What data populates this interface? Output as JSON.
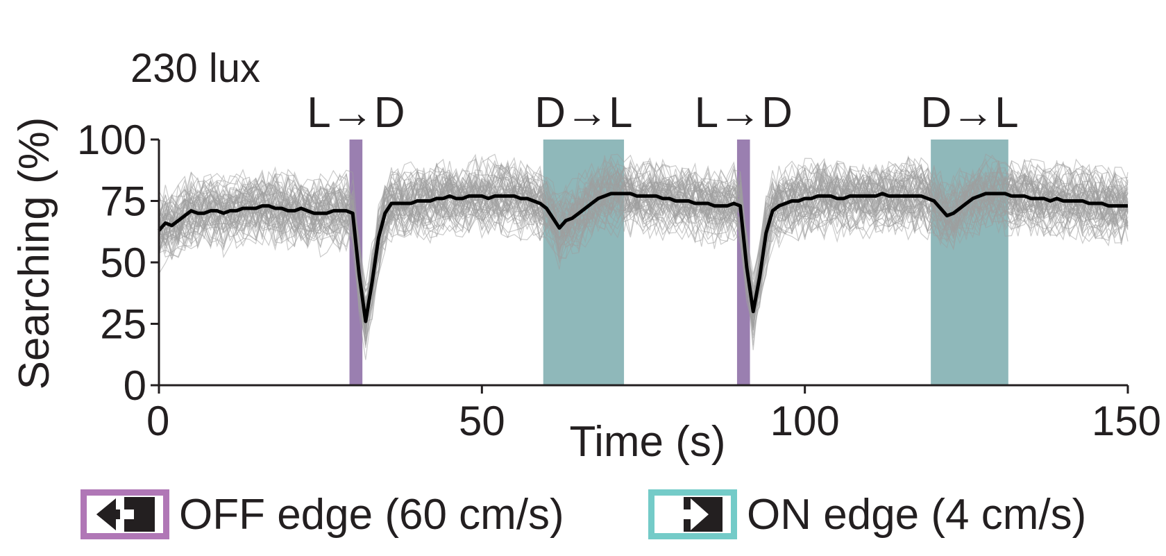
{
  "chart_data": {
    "type": "line",
    "title": "230 lux",
    "xlabel": "Time (s)",
    "ylabel": "Searching (%)",
    "xlim": [
      0,
      150
    ],
    "ylim": [
      0,
      100
    ],
    "xticks": [
      0,
      50,
      100,
      150
    ],
    "xtick_labels": [
      "0",
      "50",
      "100",
      "150"
    ],
    "yticks": [
      0,
      25,
      50,
      75,
      100
    ],
    "ytick_labels": [
      "0",
      "25",
      "50",
      "75",
      "100"
    ],
    "grid": false,
    "colors": {
      "off_edge": "#9a7fb0",
      "on_edge": "#8fb8ba",
      "mean": "#000000",
      "individual": "#9e9e9e",
      "off_legend_border": "#b077b6",
      "on_legend_border": "#74cbc8"
    },
    "stimuli": [
      {
        "label": "L→D",
        "type": "off",
        "start": 29.5,
        "end": 31.5
      },
      {
        "label": "D→L",
        "type": "on",
        "start": 59.5,
        "end": 72
      },
      {
        "label": "L→D",
        "type": "off",
        "start": 89.5,
        "end": 91.5
      },
      {
        "label": "D→L",
        "type": "on",
        "start": 119.5,
        "end": 131.5
      }
    ],
    "series": [
      {
        "role": "mean",
        "points": [
          [
            0,
            63
          ],
          [
            1,
            66
          ],
          [
            2,
            65
          ],
          [
            3,
            67
          ],
          [
            4,
            69
          ],
          [
            5,
            71
          ],
          [
            6,
            70
          ],
          [
            7,
            70
          ],
          [
            8,
            71
          ],
          [
            9,
            71
          ],
          [
            10,
            70
          ],
          [
            11,
            71
          ],
          [
            12,
            71
          ],
          [
            13,
            72
          ],
          [
            14,
            72
          ],
          [
            15,
            72
          ],
          [
            16,
            73
          ],
          [
            17,
            73
          ],
          [
            18,
            72
          ],
          [
            19,
            72
          ],
          [
            20,
            71
          ],
          [
            21,
            71
          ],
          [
            22,
            72
          ],
          [
            23,
            71
          ],
          [
            24,
            70
          ],
          [
            25,
            70
          ],
          [
            26,
            70
          ],
          [
            27,
            71
          ],
          [
            28,
            71
          ],
          [
            29,
            71
          ],
          [
            30,
            70
          ],
          [
            31,
            45
          ],
          [
            32,
            26
          ],
          [
            33,
            42
          ],
          [
            34,
            60
          ],
          [
            35,
            70
          ],
          [
            36,
            74
          ],
          [
            37,
            74
          ],
          [
            38,
            74
          ],
          [
            39,
            74
          ],
          [
            40,
            75
          ],
          [
            41,
            75
          ],
          [
            42,
            75
          ],
          [
            43,
            76
          ],
          [
            44,
            76
          ],
          [
            45,
            77
          ],
          [
            46,
            76
          ],
          [
            47,
            76
          ],
          [
            48,
            77
          ],
          [
            49,
            77
          ],
          [
            50,
            77
          ],
          [
            51,
            76
          ],
          [
            52,
            77
          ],
          [
            53,
            77
          ],
          [
            54,
            77
          ],
          [
            55,
            77
          ],
          [
            56,
            76
          ],
          [
            57,
            76
          ],
          [
            58,
            75
          ],
          [
            59,
            74
          ],
          [
            60,
            72
          ],
          [
            61,
            68
          ],
          [
            62,
            64
          ],
          [
            63,
            67
          ],
          [
            64,
            68
          ],
          [
            65,
            70
          ],
          [
            66,
            72
          ],
          [
            67,
            74
          ],
          [
            68,
            76
          ],
          [
            69,
            77
          ],
          [
            70,
            78
          ],
          [
            71,
            78
          ],
          [
            72,
            78
          ],
          [
            73,
            78
          ],
          [
            74,
            77
          ],
          [
            75,
            77
          ],
          [
            76,
            77
          ],
          [
            77,
            77
          ],
          [
            78,
            76
          ],
          [
            79,
            76
          ],
          [
            80,
            75
          ],
          [
            81,
            75
          ],
          [
            82,
            75
          ],
          [
            83,
            74
          ],
          [
            84,
            74
          ],
          [
            85,
            74
          ],
          [
            86,
            73
          ],
          [
            87,
            73
          ],
          [
            88,
            73
          ],
          [
            89,
            74
          ],
          [
            90,
            73
          ],
          [
            91,
            48
          ],
          [
            92,
            30
          ],
          [
            93,
            44
          ],
          [
            94,
            62
          ],
          [
            95,
            71
          ],
          [
            96,
            73
          ],
          [
            97,
            74
          ],
          [
            98,
            75
          ],
          [
            99,
            75
          ],
          [
            100,
            76
          ],
          [
            101,
            76
          ],
          [
            102,
            77
          ],
          [
            103,
            77
          ],
          [
            104,
            77
          ],
          [
            105,
            76
          ],
          [
            106,
            76
          ],
          [
            107,
            77
          ],
          [
            108,
            77
          ],
          [
            109,
            77
          ],
          [
            110,
            77
          ],
          [
            111,
            77
          ],
          [
            112,
            78
          ],
          [
            113,
            77
          ],
          [
            114,
            77
          ],
          [
            115,
            77
          ],
          [
            116,
            77
          ],
          [
            117,
            77
          ],
          [
            118,
            77
          ],
          [
            119,
            76
          ],
          [
            120,
            75
          ],
          [
            121,
            72
          ],
          [
            122,
            69
          ],
          [
            123,
            70
          ],
          [
            124,
            72
          ],
          [
            125,
            74
          ],
          [
            126,
            76
          ],
          [
            127,
            77
          ],
          [
            128,
            78
          ],
          [
            129,
            78
          ],
          [
            130,
            78
          ],
          [
            131,
            78
          ],
          [
            132,
            77
          ],
          [
            133,
            77
          ],
          [
            134,
            77
          ],
          [
            135,
            76
          ],
          [
            136,
            76
          ],
          [
            137,
            76
          ],
          [
            138,
            75
          ],
          [
            139,
            76
          ],
          [
            140,
            75
          ],
          [
            141,
            75
          ],
          [
            142,
            75
          ],
          [
            143,
            75
          ],
          [
            144,
            74
          ],
          [
            145,
            74
          ],
          [
            146,
            74
          ],
          [
            147,
            73
          ],
          [
            148,
            73
          ],
          [
            149,
            73
          ],
          [
            150,
            73
          ]
        ]
      }
    ],
    "individual_traces": {
      "count": 60,
      "spread_pct": 14
    }
  },
  "legend": [
    {
      "label": "OFF edge (60 cm/s)",
      "icon": "arrow-left-icon"
    },
    {
      "label": "ON edge (4 cm/s)",
      "icon": "arrow-right-icon"
    }
  ]
}
